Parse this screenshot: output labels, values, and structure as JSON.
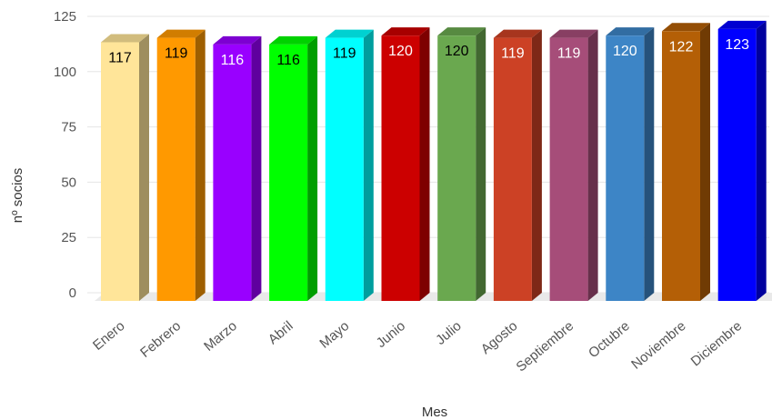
{
  "chart_data": {
    "type": "bar",
    "style": "3d",
    "categories": [
      "Enero",
      "Febrero",
      "Marzo",
      "Abril",
      "Mayo",
      "Junio",
      "Julio",
      "Agosto",
      "Septiembre",
      "Octubre",
      "Noviembre",
      "Diciembre"
    ],
    "values": [
      117,
      119,
      116,
      116,
      119,
      120,
      120,
      119,
      119,
      120,
      122,
      123
    ],
    "data_labels": [
      "117",
      "119",
      "116",
      "116",
      "119",
      "120",
      "120",
      "119",
      "119",
      "120",
      "122",
      "123"
    ],
    "bar_colors": [
      "#FFE599",
      "#FF9900",
      "#9900FF",
      "#00FF00",
      "#00FFFF",
      "#CC0000",
      "#6AA84F",
      "#CC4125",
      "#A64D79",
      "#3D85C6",
      "#B45F06",
      "#0000FF"
    ],
    "label_colors": [
      "#000000",
      "#000000",
      "#ffffff",
      "#000000",
      "#000000",
      "#ffffff",
      "#000000",
      "#ffffff",
      "#ffffff",
      "#ffffff",
      "#ffffff",
      "#ffffff"
    ],
    "title": "",
    "xlabel": "Mes",
    "ylabel": "nº socios",
    "ylim": [
      0,
      125
    ],
    "yticks": [
      0,
      25,
      50,
      75,
      100,
      125
    ],
    "ytick_labels": [
      "0",
      "25",
      "50",
      "75",
      "100",
      "125"
    ],
    "grid": true,
    "legend": "none"
  }
}
